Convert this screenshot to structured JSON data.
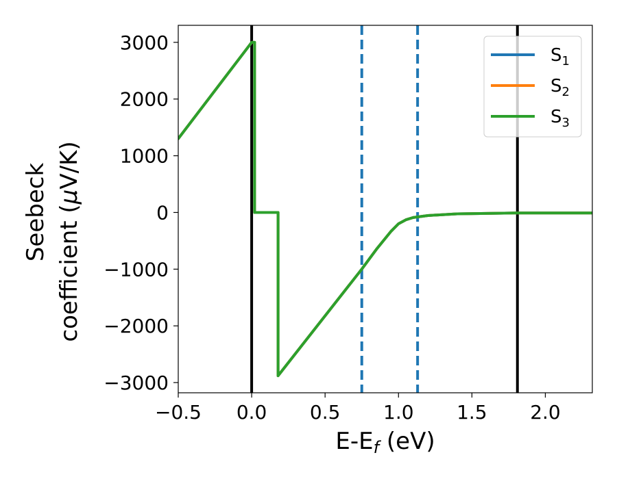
{
  "chart_data": {
    "type": "line",
    "xlabel": "E-E",
    "xlabel_sub": "f",
    "xlabel_unit": " (eV)",
    "ylabel_line1": "Seebeck",
    "ylabel_line2": "coefficient  (",
    "ylabel_mu": "μ",
    "ylabel_unit": "V/K)",
    "xlim": [
      -0.5,
      2.32
    ],
    "ylim": [
      -3180,
      3300
    ],
    "x_ticks": [
      -0.5,
      0.0,
      0.5,
      1.0,
      1.5,
      2.0
    ],
    "x_tick_labels": [
      "−0.5",
      "0.0",
      "0.5",
      "1.0",
      "1.5",
      "2.0"
    ],
    "y_ticks": [
      -3000,
      -2000,
      -1000,
      0,
      1000,
      2000,
      3000
    ],
    "y_tick_labels": [
      "−3000",
      "−2000",
      "−1000",
      "0",
      "1000",
      "2000",
      "3000"
    ],
    "grid": false,
    "legend_position": "top-right",
    "series": [
      {
        "name": "S",
        "name_sub": "1",
        "color": "#1f77b4",
        "x": [
          -0.5,
          0.0,
          0.02,
          0.02,
          0.18,
          0.18,
          0.75,
          0.85,
          0.95,
          1.0,
          1.05,
          1.1,
          1.2,
          1.4,
          1.8,
          2.32
        ],
        "y": [
          1300,
          3000,
          3000,
          0,
          0,
          -2880,
          -1000,
          -650,
          -330,
          -200,
          -130,
          -90,
          -55,
          -25,
          -10,
          -10
        ]
      },
      {
        "name": "S",
        "name_sub": "2",
        "color": "#ff7f0e",
        "x": [
          -0.5,
          0.0,
          0.02,
          0.02,
          0.18,
          0.18,
          0.75,
          0.85,
          0.95,
          1.0,
          1.05,
          1.1,
          1.2,
          1.4,
          1.8,
          2.32
        ],
        "y": [
          1300,
          3000,
          3000,
          0,
          0,
          -2880,
          -1000,
          -650,
          -330,
          -200,
          -130,
          -90,
          -55,
          -25,
          -10,
          -10
        ]
      },
      {
        "name": "S",
        "name_sub": "3",
        "color": "#2ca02c",
        "x": [
          -0.5,
          0.0,
          0.02,
          0.02,
          0.18,
          0.18,
          0.75,
          0.85,
          0.95,
          1.0,
          1.05,
          1.1,
          1.2,
          1.4,
          1.8,
          2.32
        ],
        "y": [
          1300,
          3000,
          3000,
          0,
          0,
          -2880,
          -1000,
          -650,
          -330,
          -200,
          -130,
          -90,
          -55,
          -25,
          -10,
          -10
        ]
      }
    ],
    "vlines": [
      {
        "x": 0.0,
        "color": "#000000",
        "style": "solid"
      },
      {
        "x": 1.81,
        "color": "#000000",
        "style": "solid"
      },
      {
        "x": 0.75,
        "color": "#1f77b4",
        "style": "dashed"
      },
      {
        "x": 1.13,
        "color": "#1f77b4",
        "style": "dashed"
      }
    ]
  }
}
